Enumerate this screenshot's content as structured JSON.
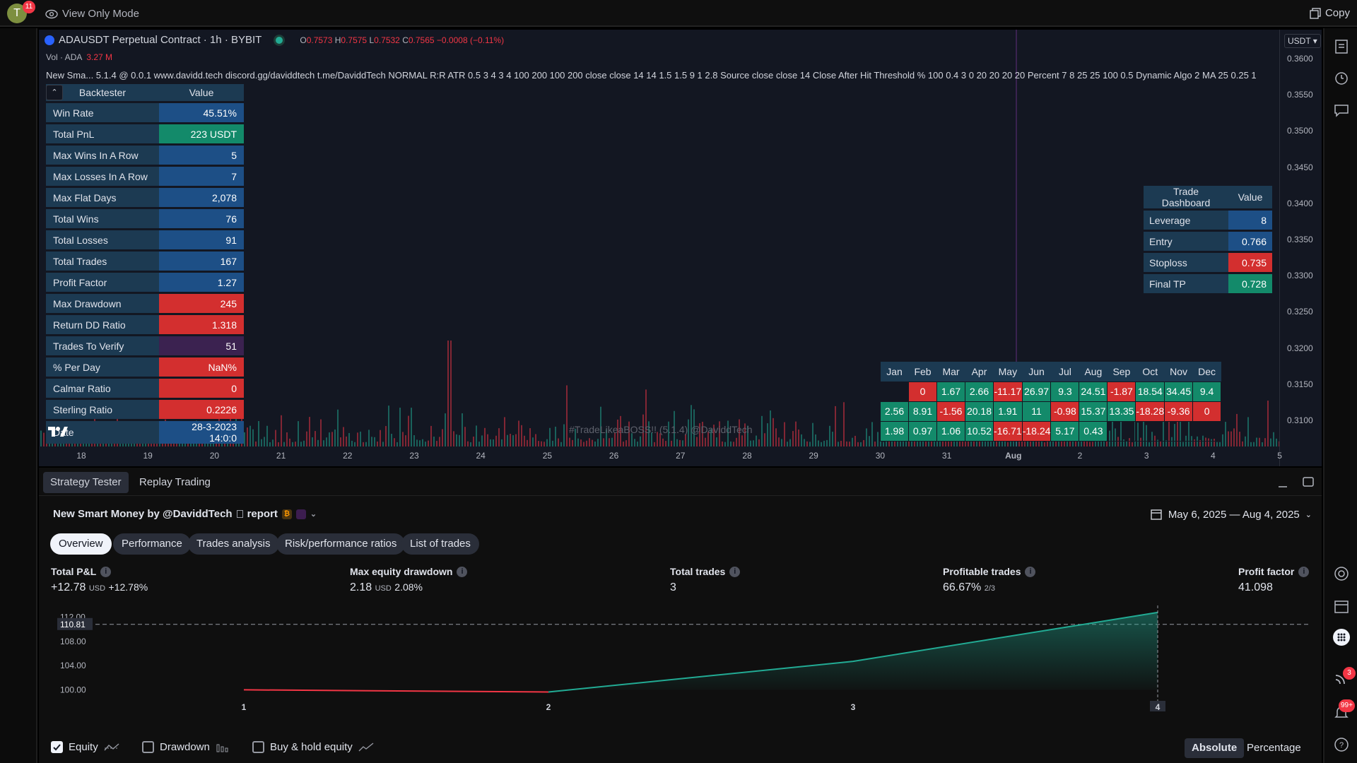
{
  "topbar": {
    "avatar_letter": "T",
    "notif_count": "11",
    "view_mode": "View Only Mode",
    "copy_label": "Copy"
  },
  "chart": {
    "symbol": "ADAUSDT Perpetual Contract · 1h · BYBIT",
    "ohlc": {
      "o_label": "O",
      "o": "0.7573",
      "h_label": "H",
      "h": "0.7575",
      "l_label": "L",
      "l": "0.7532",
      "c_label": "C",
      "c": "0.7565",
      "chg": "−0.0008 (−0.11%)"
    },
    "vol_label": "Vol · ADA",
    "vol_value": "3.27 M",
    "indicator_line": "New Sma...  5.1.4 @ 0.0.1 www.davidd.tech discord.gg/daviddtech t.me/DaviddTech NORMAL R:R ATR 0.5 3 4 3 4 100 200 100 200 close close 14 14 1.5 1.5 9 1 2.8 Source close close 14 Close After Hit Threshold % 100 0.4 3 0 20 20 20 20 Percent 7 8 25 25 100 0.5 Dynamic Algo 2 MA 25 0.25 1",
    "currency": "USDT",
    "y_ticks": [
      "0.3600",
      "0.3550",
      "0.3500",
      "0.3450",
      "0.3400",
      "0.3350",
      "0.3300",
      "0.3250",
      "0.3200",
      "0.3150",
      "0.3100"
    ],
    "x_ticks": [
      "18",
      "19",
      "20",
      "21",
      "22",
      "23",
      "24",
      "25",
      "26",
      "27",
      "28",
      "29",
      "30",
      "31",
      "Aug",
      "2",
      "3",
      "4",
      "5"
    ],
    "watermark": "#TradeLikeaBOSS!! (5.1.4) @DaviddTech"
  },
  "backtester": {
    "header_key": "Backtester",
    "header_val": "Value",
    "rows": [
      {
        "k": "Win Rate",
        "v": "45.51%",
        "c": "blue"
      },
      {
        "k": "Total PnL",
        "v": "223 USDT",
        "c": "green"
      },
      {
        "k": "Max Wins In A Row",
        "v": "5",
        "c": "blue"
      },
      {
        "k": "Max Losses In A Row",
        "v": "7",
        "c": "blue"
      },
      {
        "k": "Max Flat Days",
        "v": "2,078",
        "c": "blue"
      },
      {
        "k": "Total Wins",
        "v": "76",
        "c": "blue"
      },
      {
        "k": "Total Losses",
        "v": "91",
        "c": "blue"
      },
      {
        "k": "Total Trades",
        "v": "167",
        "c": "blue"
      },
      {
        "k": "Profit Factor",
        "v": "1.27",
        "c": "blue"
      },
      {
        "k": "Max Drawdown",
        "v": "245",
        "c": "red"
      },
      {
        "k": "Return DD Ratio",
        "v": "1.318",
        "c": "red"
      },
      {
        "k": "Trades To Verify",
        "v": "51",
        "c": "purple"
      },
      {
        "k": "% Per Day",
        "v": "NaN%",
        "c": "red"
      },
      {
        "k": "Calmar Ratio",
        "v": "0",
        "c": "red"
      },
      {
        "k": "Sterling Ratio",
        "v": "0.2226",
        "c": "red"
      },
      {
        "k": "Date",
        "v": "28-3-2023 14:0:0",
        "c": "blue"
      }
    ]
  },
  "dashboard": {
    "header_key": "Trade Dashboard",
    "header_val": "Value",
    "rows": [
      {
        "k": "Leverage",
        "v": "8",
        "c": "blue"
      },
      {
        "k": "Entry",
        "v": "0.766",
        "c": "blue"
      },
      {
        "k": "Stoploss",
        "v": "0.735",
        "c": "red"
      },
      {
        "k": "Final TP",
        "v": "0.728",
        "c": "green"
      }
    ]
  },
  "monthly": {
    "months": [
      "Jan",
      "Feb",
      "Mar",
      "Apr",
      "May",
      "Jun",
      "Jul",
      "Aug",
      "Sep",
      "Oct",
      "Nov",
      "Dec"
    ],
    "rows": [
      [
        "",
        "0",
        "1.67",
        "2.66",
        "-11.17",
        "26.97",
        "9.3",
        "24.51",
        "-1.87",
        "18.54",
        "34.45",
        "9.4"
      ],
      [
        "2.56",
        "8.91",
        "-1.56",
        "20.18",
        "1.91",
        "11",
        "-0.98",
        "15.37",
        "13.35",
        "-18.28",
        "-9.36",
        "0"
      ],
      [
        "1.98",
        "0.97",
        "1.06",
        "10.52",
        "-16.71",
        "-18.24",
        "5.17",
        "0.43",
        "",
        "",
        "",
        ""
      ]
    ]
  },
  "panel": {
    "tabs": [
      "Strategy Tester",
      "Replay Trading"
    ],
    "strategy_name": "New Smart Money by @DaviddTech",
    "report_label": "report",
    "date_range": "May 6, 2025 — Aug 4, 2025",
    "subtabs": [
      "Overview",
      "Performance",
      "Trades analysis",
      "Risk/performance ratios",
      "List of trades"
    ],
    "stats": [
      {
        "label": "Total P&L",
        "value": "+12.78",
        "unit": "USD",
        "extra": "+12.78%"
      },
      {
        "label": "Max equity drawdown",
        "value": "2.18",
        "unit": "USD",
        "extra": "2.08%"
      },
      {
        "label": "Total trades",
        "value": "3",
        "unit": "",
        "extra": ""
      },
      {
        "label": "Profitable trades",
        "value": "66.67%",
        "unit": "2/3",
        "extra": ""
      },
      {
        "label": "Profit factor",
        "value": "41.098",
        "unit": "",
        "extra": ""
      }
    ],
    "checks": [
      {
        "label": "Equity",
        "checked": true
      },
      {
        "label": "Drawdown",
        "checked": false
      },
      {
        "label": "Buy & hold equity",
        "checked": false
      }
    ],
    "mode": [
      "Absolute",
      "Percentage"
    ]
  },
  "chart_data": {
    "type": "area",
    "x": [
      1,
      2,
      3,
      4
    ],
    "y_ticks": [
      "100.00",
      "104.00",
      "108.00",
      "112.00"
    ],
    "series": [
      {
        "values": [
          100,
          99.64,
          104.7,
          112.78
        ]
      }
    ],
    "ylim": [
      99,
      113
    ],
    "baseline_label": "110.81",
    "x_tick_labels": [
      "1",
      "2",
      "3",
      "4"
    ]
  },
  "rightbar": {
    "alert_count": "3",
    "notif_count": "99+"
  }
}
